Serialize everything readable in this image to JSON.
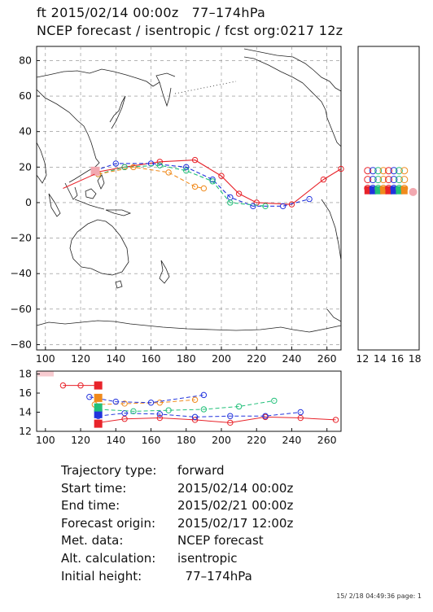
{
  "header": {
    "line1": "ft 2015/02/14 00:00z   77–174hPa",
    "line2": "NCEP forecast / isentropic / fcst org:0217 12z"
  },
  "map": {
    "x_ticks": [
      "100",
      "120",
      "140",
      "160",
      "180",
      "200",
      "220",
      "240",
      "260"
    ],
    "y_ticks": [
      "80",
      "60",
      "40",
      "20",
      "0",
      "−20",
      "−40",
      "−60",
      "−80"
    ],
    "x_range": [
      95,
      268
    ],
    "y_range": [
      -83,
      88
    ],
    "grid": "dashed"
  },
  "side_panel": {
    "x_ticks": [
      "12",
      "14",
      "16",
      "18"
    ]
  },
  "bottom_panel": {
    "y_ticks": [
      "18",
      "16",
      "14",
      "12"
    ],
    "x_ticks": [
      "100",
      "120",
      "140",
      "160",
      "180",
      "200",
      "220",
      "240",
      "260"
    ]
  },
  "colors": {
    "red": "#e8232a",
    "blue": "#2233dd",
    "green": "#22c07a",
    "orange": "#f08a1c",
    "pink": "#f2a8b0",
    "map": "#222222"
  },
  "info": [
    {
      "label": "Trajectory type:",
      "value": "forward"
    },
    {
      "label": "Start time:",
      "value": "2015/02/14 00:00z"
    },
    {
      "label": "End time:",
      "value": "2015/02/21 00:00z"
    },
    {
      "label": "Forecast origin:",
      "value": "2015/02/17 12:00z"
    },
    {
      "label": "Met. data:",
      "value": "NCEP forecast"
    },
    {
      "label": "Alt. calculation:",
      "value": "isentropic"
    },
    {
      "label": "Initial height:",
      "value": "  77–174hPa"
    }
  ],
  "footer": "15/ 2/18 04:49:36 page: 1",
  "chart_data": {
    "type": "scatter",
    "series": [
      {
        "color": "red",
        "lon": [
          128,
          145,
          165,
          185,
          200,
          210,
          220,
          240,
          258,
          268
        ],
        "lat": [
          17,
          20,
          23,
          24,
          15,
          5,
          0,
          -1,
          13,
          19
        ]
      },
      {
        "color": "blue",
        "lon": [
          128,
          140,
          160,
          180,
          195,
          205,
          218,
          235,
          250
        ],
        "lat": [
          18,
          22,
          22,
          20,
          13,
          3,
          -2,
          -2,
          2
        ]
      },
      {
        "color": "green",
        "lon": [
          130,
          145,
          165,
          180,
          195,
          205,
          225
        ],
        "lat": [
          16,
          20,
          21,
          18,
          12,
          0,
          -2
        ]
      },
      {
        "color": "orange",
        "lon": [
          130,
          150,
          170,
          185,
          190
        ],
        "lat": [
          16,
          20,
          17,
          9,
          8
        ]
      }
    ]
  }
}
